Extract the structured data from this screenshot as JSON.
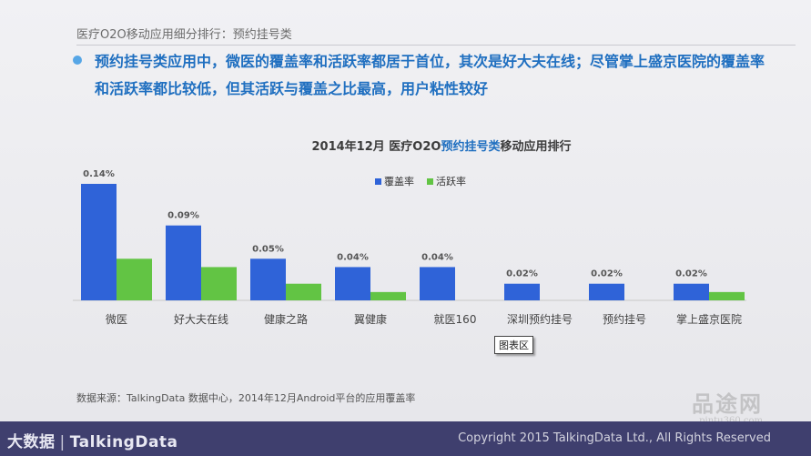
{
  "header": {
    "crumb": "医疗O2O移动应用细分排行：预约挂号类",
    "headline": "预约挂号类应用中，微医的覆盖率和活跃率都居于首位，其次是好大夫在线；尽管掌上盛京医院的覆盖率和活跃率都比较低，但其活跃与覆盖之比最高，用户粘性较好"
  },
  "chart_title": {
    "prefix": "2014年12月 医疗O2O",
    "highlight": "预约挂号类",
    "suffix": "移动应用排行"
  },
  "tooltip": "图表区",
  "source": "数据来源：TalkingData 数据中心，2014年12月Android平台的应用覆盖率",
  "footer": {
    "brand": "大数据",
    "brand2": "TalkingData",
    "copyright": "Copyright 2015 TalkingData Ltd., All Rights Reserved"
  },
  "watermark": {
    "big": "品途网",
    "small": "pintu360.com"
  },
  "colors": {
    "coverage": "#2f63d8",
    "active": "#62c444"
  },
  "chart_data": {
    "type": "bar",
    "title": "2014年12月 医疗O2O预约挂号类移动应用排行",
    "legend_position": "top-center",
    "categories": [
      "微医",
      "好大夫在线",
      "健康之路",
      "翼健康",
      "就医160",
      "深圳预约挂号",
      "预约挂号",
      "掌上盛京医院"
    ],
    "series": [
      {
        "name": "覆盖率",
        "values": [
          0.14,
          0.09,
          0.05,
          0.04,
          0.04,
          0.02,
          0.02,
          0.02
        ],
        "labels": [
          "0.14%",
          "0.09%",
          "0.05%",
          "0.04%",
          "0.04%",
          "0.02%",
          "0.02%",
          "0.02%"
        ]
      },
      {
        "name": "活跃率",
        "values": [
          0.05,
          0.04,
          0.02,
          0.01,
          0.0,
          0.0,
          0.0,
          0.01
        ]
      }
    ],
    "ylim": [
      0,
      0.14
    ],
    "grid": false
  }
}
